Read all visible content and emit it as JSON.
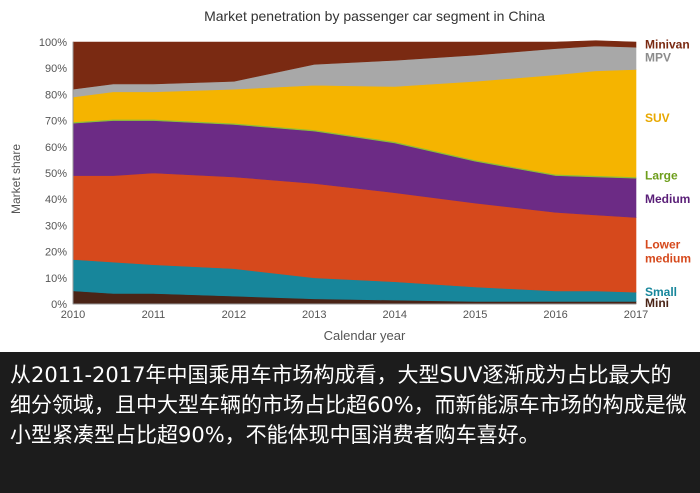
{
  "chart_data": {
    "type": "area",
    "stacked": true,
    "title": "Market penetration by passenger car segment in China",
    "xlabel": "Calendar year",
    "ylabel": "Market share",
    "x": [
      2010,
      2010.5,
      2011,
      2012,
      2013,
      2014,
      2015,
      2016,
      2016.5,
      2017
    ],
    "ylim": [
      0,
      100
    ],
    "yticks": [
      "0%",
      "10%",
      "20%",
      "30%",
      "40%",
      "50%",
      "60%",
      "70%",
      "80%",
      "90%",
      "100%"
    ],
    "xticks": [
      "2010",
      "2011",
      "2012",
      "2013",
      "2014",
      "2015",
      "2016",
      "2017"
    ],
    "series": [
      {
        "name": "Mini",
        "color": "#4a2417",
        "values": [
          5,
          4,
          4,
          3,
          2,
          1.5,
          1,
          1,
          1,
          1
        ]
      },
      {
        "name": "Small",
        "color": "#17869b",
        "values": [
          12,
          12,
          11,
          10.5,
          8,
          7,
          5.5,
          4,
          4,
          3.5
        ]
      },
      {
        "name": "Lower medium",
        "color": "#d6491c",
        "values": [
          32,
          33,
          35,
          35,
          36,
          34,
          32,
          30,
          29,
          28.5
        ]
      },
      {
        "name": "Medium",
        "color": "#6c2b85",
        "values": [
          20,
          21,
          20,
          20,
          20,
          19,
          16,
          14,
          14.5,
          15
        ]
      },
      {
        "name": "Large",
        "color": "#8fbf36",
        "values": [
          0.5,
          0.5,
          0.5,
          0.5,
          0.5,
          0.5,
          0.5,
          0.5,
          0.5,
          0.5
        ]
      },
      {
        "name": "SUV",
        "color": "#f5b400",
        "values": [
          9.5,
          10.5,
          10.5,
          13,
          17,
          21,
          30,
          38,
          40,
          41
        ]
      },
      {
        "name": "MPV",
        "color": "#a8a8a8",
        "values": [
          3,
          3,
          3,
          3,
          8,
          10,
          10,
          10,
          9.5,
          8.5
        ]
      },
      {
        "name": "Minivan",
        "color": "#7a2a12",
        "values": [
          18,
          16,
          16,
          15,
          8.5,
          7,
          5,
          2.5,
          2,
          2
        ]
      }
    ],
    "legend": [
      {
        "text": "Minivan",
        "color": "#7a2a12",
        "level": 99
      },
      {
        "text": "MPV",
        "color": "#8c8c8c",
        "level": 94
      },
      {
        "text": "SUV",
        "color": "#e8a800",
        "level": 71
      },
      {
        "text": "Large",
        "color": "#6e9e1c",
        "level": 49
      },
      {
        "text": "Medium",
        "color": "#5a1f78",
        "level": 40
      },
      {
        "text": "Lower\nmedium",
        "color": "#d6491c",
        "level": 20
      },
      {
        "text": "Small",
        "color": "#17869b",
        "level": 4.5
      },
      {
        "text": "Mini",
        "color": "#4a2417",
        "level": 0.3
      }
    ]
  },
  "caption": {
    "text": "从2011-2017年中国乘用车市场构成看，大型SUV逐渐成为占比最大的细分领域，且中大型车辆的市场占比超60%，而新能源车市场的构成是微小型紧凑型占比超90%，不能体现中国消费者购车喜好。"
  }
}
